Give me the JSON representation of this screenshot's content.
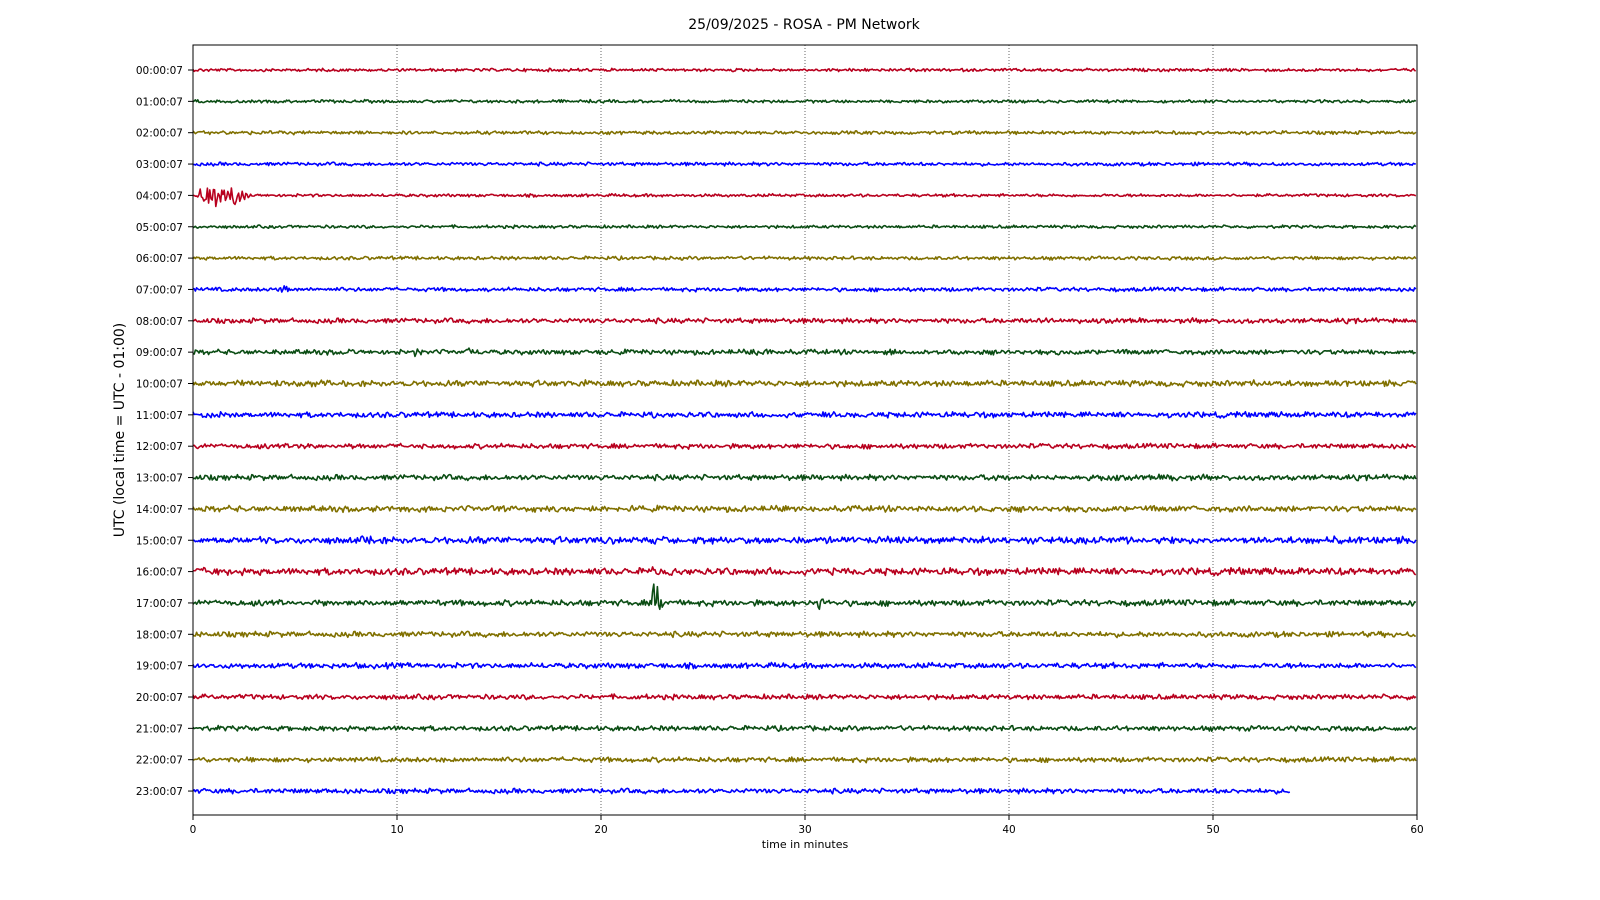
{
  "chart_data": {
    "type": "line",
    "title": "25/09/2025 - ROSA - PM Network",
    "xlabel": "time in minutes",
    "ylabel": "UTC (local time = UTC - 01:00)",
    "xlim": [
      0,
      60
    ],
    "xticks": [
      0,
      10,
      20,
      30,
      40,
      50,
      60
    ],
    "grid": "vertical dotted",
    "colors": [
      "#b8001e",
      "#0b4d14",
      "#807000",
      "#0000ff"
    ],
    "rows": [
      {
        "label": "00:00:07",
        "end": 60,
        "noise": 1.2,
        "events": []
      },
      {
        "label": "01:00:07",
        "end": 60,
        "noise": 1.2,
        "events": []
      },
      {
        "label": "02:00:07",
        "end": 60,
        "noise": 1.4,
        "events": []
      },
      {
        "label": "03:00:07",
        "end": 60,
        "noise": 1.4,
        "events": []
      },
      {
        "label": "04:00:07",
        "end": 60,
        "noise": 1.2,
        "events": [
          {
            "t": 0.3,
            "amp": 18,
            "dur": 2.5
          }
        ]
      },
      {
        "label": "05:00:07",
        "end": 60,
        "noise": 1.2,
        "events": []
      },
      {
        "label": "06:00:07",
        "end": 60,
        "noise": 1.4,
        "events": []
      },
      {
        "label": "07:00:07",
        "end": 60,
        "noise": 1.6,
        "events": [
          {
            "t": 4.1,
            "amp": 9,
            "dur": 0.6
          },
          {
            "t": 14,
            "amp": 2.5,
            "dur": 0.5
          }
        ]
      },
      {
        "label": "08:00:07",
        "end": 60,
        "noise": 2.0,
        "events": [
          {
            "t": 1.8,
            "amp": 3,
            "dur": 0.6
          },
          {
            "t": 41.5,
            "amp": 3,
            "dur": 3
          }
        ]
      },
      {
        "label": "09:00:07",
        "end": 60,
        "noise": 2.0,
        "events": [
          {
            "t": 4,
            "amp": 4,
            "dur": 0.5
          },
          {
            "t": 7.5,
            "amp": 6,
            "dur": 0.4
          },
          {
            "t": 10.8,
            "amp": 6,
            "dur": 0.5
          },
          {
            "t": 13.5,
            "amp": 5,
            "dur": 0.3
          },
          {
            "t": 20.2,
            "amp": 5,
            "dur": 0.4
          },
          {
            "t": 27.5,
            "amp": 8,
            "dur": 1.2
          }
        ]
      },
      {
        "label": "10:00:07",
        "end": 60,
        "noise": 2.4,
        "events": [
          {
            "t": 18.5,
            "amp": 3,
            "dur": 1
          },
          {
            "t": 52,
            "amp": 3,
            "dur": 1
          },
          {
            "t": 55.5,
            "amp": 4,
            "dur": 1.2
          }
        ]
      },
      {
        "label": "11:00:07",
        "end": 60,
        "noise": 2.2,
        "events": [
          {
            "t": 1.5,
            "amp": 3,
            "dur": 1
          },
          {
            "t": 22.5,
            "amp": 4,
            "dur": 0.3
          }
        ]
      },
      {
        "label": "12:00:07",
        "end": 60,
        "noise": 2.0,
        "events": [
          {
            "t": 5,
            "amp": 3,
            "dur": 3.5
          },
          {
            "t": 10.5,
            "amp": 3,
            "dur": 1.5
          }
        ]
      },
      {
        "label": "13:00:07",
        "end": 60,
        "noise": 2.2,
        "events": [
          {
            "t": 39,
            "amp": 3,
            "dur": 1
          },
          {
            "t": 47.5,
            "amp": 3,
            "dur": 0.8
          }
        ]
      },
      {
        "label": "14:00:07",
        "end": 60,
        "noise": 2.4,
        "events": [
          {
            "t": 35.5,
            "amp": 3,
            "dur": 1
          },
          {
            "t": 39,
            "amp": 3,
            "dur": 0.6
          }
        ]
      },
      {
        "label": "15:00:07",
        "end": 60,
        "noise": 2.8,
        "events": [
          {
            "t": 2.9,
            "amp": 4,
            "dur": 0.3
          },
          {
            "t": 8.5,
            "amp": 4,
            "dur": 0.3
          },
          {
            "t": 42.5,
            "amp": 4,
            "dur": 4
          }
        ]
      },
      {
        "label": "16:00:07",
        "end": 60,
        "noise": 2.8,
        "events": [
          {
            "t": 0.5,
            "amp": 4,
            "dur": 0.5
          },
          {
            "t": 22.5,
            "amp": 7,
            "dur": 0.3
          },
          {
            "t": 30.5,
            "amp": 3,
            "dur": 2
          },
          {
            "t": 37.3,
            "amp": 6,
            "dur": 0.4
          }
        ]
      },
      {
        "label": "17:00:07",
        "end": 60,
        "noise": 2.4,
        "events": [
          {
            "t": 11,
            "amp": 3,
            "dur": 1.5
          },
          {
            "t": 22.5,
            "amp": 30,
            "dur": 0.6
          },
          {
            "t": 30.6,
            "amp": 12,
            "dur": 0.6
          }
        ]
      },
      {
        "label": "18:00:07",
        "end": 60,
        "noise": 2.2,
        "events": []
      },
      {
        "label": "19:00:07",
        "end": 60,
        "noise": 2.2,
        "events": []
      },
      {
        "label": "20:00:07",
        "end": 60,
        "noise": 2.0,
        "events": []
      },
      {
        "label": "21:00:07",
        "end": 60,
        "noise": 2.0,
        "events": []
      },
      {
        "label": "22:00:07",
        "end": 60,
        "noise": 2.0,
        "events": []
      },
      {
        "label": "23:00:07",
        "end": 53.8,
        "noise": 2.0,
        "events": []
      }
    ]
  }
}
